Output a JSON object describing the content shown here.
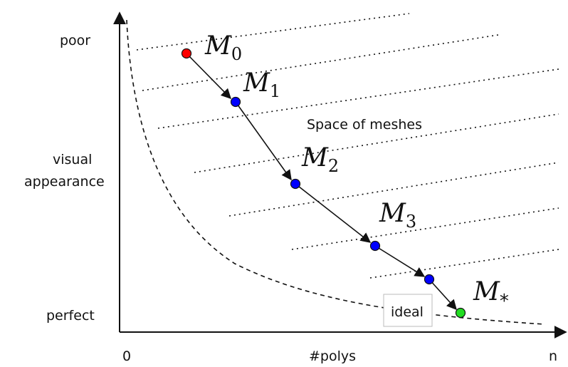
{
  "axes": {
    "y_labels": {
      "top": "poor",
      "middle_line1": "visual",
      "middle_line2": "appearance",
      "bottom": "perfect"
    },
    "x_labels": {
      "left": "0",
      "center": "#polys",
      "right": "n"
    }
  },
  "region_label": "Space of meshes",
  "ideal_label": "ideal",
  "meshes": [
    {
      "symbol": "M",
      "subscript": "0",
      "color": "#ff0000"
    },
    {
      "symbol": "M",
      "subscript": "1",
      "color": "#0000ff"
    },
    {
      "symbol": "M",
      "subscript": "2",
      "color": "#0000ff"
    },
    {
      "symbol": "M",
      "subscript": "3",
      "color": "#0000ff"
    },
    {
      "symbol": "M",
      "subscript": "",
      "color": "#0000ff"
    },
    {
      "symbol": "M",
      "subscript": "*",
      "color": "#22dd22"
    }
  ],
  "colors": {
    "start": "#ff0000",
    "intermediate": "#0000ff",
    "final": "#22dd22",
    "ink": "#111111"
  }
}
